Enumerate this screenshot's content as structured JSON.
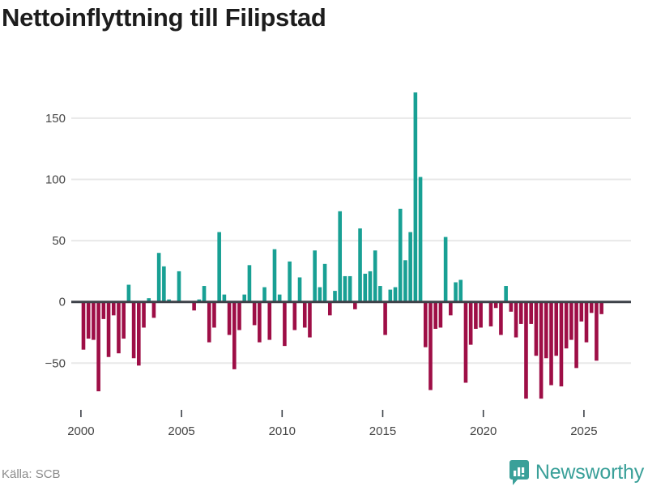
{
  "title": "Nettoinflyttning till Filipstad",
  "source": "Källa: SCB",
  "brand": {
    "name": "Newsworthy",
    "color": "#3aa099"
  },
  "colors": {
    "positive_bar": "#18a094",
    "negative_bar": "#9e0e46",
    "axis_line": "#3d4148",
    "gridline": "#e8e8e8",
    "tick_label": "#454545",
    "title_text": "#1d1d1d",
    "source_text": "#8b8b8b",
    "background": "#ffffff"
  },
  "chart_data": {
    "type": "bar",
    "title": "Nettoinflyttning till Filipstad",
    "source": "Källa: SCB",
    "frequency": "quarterly",
    "x_range": "2000Q1–2025Q4",
    "x_start_year": 2000,
    "periods_per_year": 4,
    "series": [
      {
        "name": "Nettoinflyttning",
        "values": [
          -39,
          -30,
          -31,
          -73,
          -14,
          -45,
          -11,
          -42,
          -30,
          14,
          -46,
          -52,
          -21,
          3,
          -13,
          40,
          29,
          2,
          0,
          25,
          0,
          0,
          -7,
          2,
          13,
          -33,
          -21,
          57,
          6,
          -27,
          -55,
          -23,
          6,
          30,
          -19,
          -33,
          12,
          -31,
          43,
          6,
          -36,
          33,
          -23,
          20,
          -21,
          -29,
          42,
          12,
          31,
          -11,
          9,
          74,
          21,
          21,
          -6,
          60,
          23,
          25,
          42,
          13,
          -27,
          10,
          12,
          76,
          34,
          57,
          171,
          102,
          -37,
          -72,
          -22,
          -21,
          53,
          -11,
          16,
          18,
          -66,
          -35,
          -22,
          -21,
          0,
          -20,
          -5,
          -27,
          13,
          -8,
          -29,
          -18,
          -79,
          -18,
          -44,
          -79,
          -46,
          -68,
          -44,
          -69,
          -38,
          -31,
          -54,
          -16,
          -33,
          -9,
          -48,
          -10
        ]
      }
    ],
    "y_ticks": [
      {
        "label": "150",
        "value": 150
      },
      {
        "label": "100",
        "value": 100
      },
      {
        "label": "50",
        "value": 50
      },
      {
        "label": "0",
        "value": 0
      },
      {
        "label": "−50",
        "value": -50
      }
    ],
    "x_ticks": [
      {
        "label": "2000",
        "year": 2000
      },
      {
        "label": "2005",
        "year": 2005
      },
      {
        "label": "2010",
        "year": 2010
      },
      {
        "label": "2015",
        "year": 2015
      },
      {
        "label": "2020",
        "year": 2020
      },
      {
        "label": "2025",
        "year": 2025
      }
    ],
    "ylim": [
      -87,
      180
    ],
    "grid": true,
    "legend": false
  }
}
